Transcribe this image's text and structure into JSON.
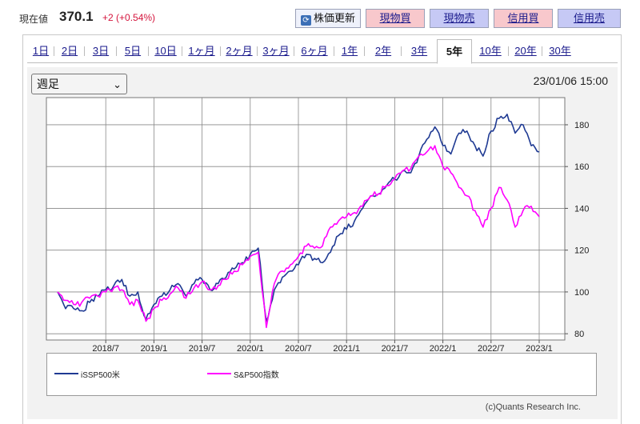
{
  "header": {
    "price_label": "現在値",
    "price_value": "370.1",
    "price_change": "+2 (+0.54%)"
  },
  "buttons": {
    "refresh": "株価更新",
    "genbutsu_buy": "現物買",
    "genbutsu_sell": "現物売",
    "shinyo_buy": "信用買",
    "shinyo_sell": "信用売"
  },
  "tabs": [
    {
      "label": "1日"
    },
    {
      "label": "2日"
    },
    {
      "label": "3日"
    },
    {
      "label": "5日"
    },
    {
      "label": "10日"
    },
    {
      "label": "1ヶ月"
    },
    {
      "label": "2ヶ月"
    },
    {
      "label": "3ヶ月"
    },
    {
      "label": "6ヶ月"
    },
    {
      "label": "1年"
    },
    {
      "label": "2年"
    },
    {
      "label": "3年"
    },
    {
      "label": "5年",
      "active": true
    },
    {
      "label": "10年"
    },
    {
      "label": "20年"
    },
    {
      "label": "30年"
    }
  ],
  "period_select": {
    "value": "週足"
  },
  "timestamp": "23/01/06 15:00",
  "credit": "(c)Quants Research Inc.",
  "colors": {
    "series1": "#1f3a93",
    "series2": "#ff00ff",
    "grid": "#888888",
    "plot_bg": "#ffffff"
  },
  "chart_data": {
    "type": "line",
    "x_tick_labels": [
      "2018/7",
      "2019/1",
      "2019/7",
      "2020/1",
      "2020/7",
      "2021/1",
      "2021/7",
      "2022/1",
      "2022/7",
      "2023/1"
    ],
    "ylim": [
      77,
      193
    ],
    "y_ticks": [
      80,
      100,
      120,
      140,
      160,
      180
    ],
    "grid": true,
    "legend_position": "bottom",
    "series": [
      {
        "name": "iSSP500米",
        "color": "#1f3a93",
        "points": [
          [
            "2018/01",
            100
          ],
          [
            "2018/02",
            92
          ],
          [
            "2018/03",
            92
          ],
          [
            "2018/04",
            91
          ],
          [
            "2018/05",
            95
          ],
          [
            "2018/06",
            98
          ],
          [
            "2018/07",
            101
          ],
          [
            "2018/08",
            103
          ],
          [
            "2018/09",
            106
          ],
          [
            "2018/10",
            98
          ],
          [
            "2018/11",
            100
          ],
          [
            "2018/12",
            87
          ],
          [
            "2019/01",
            94
          ],
          [
            "2019/02",
            98
          ],
          [
            "2019/03",
            101
          ],
          [
            "2019/04",
            104
          ],
          [
            "2019/05",
            98
          ],
          [
            "2019/06",
            104
          ],
          [
            "2019/07",
            106
          ],
          [
            "2019/08",
            101
          ],
          [
            "2019/09",
            104
          ],
          [
            "2019/10",
            107
          ],
          [
            "2019/11",
            111
          ],
          [
            "2019/12",
            114
          ],
          [
            "2020/01",
            118
          ],
          [
            "2020/02",
            121
          ],
          [
            "2020/03",
            86
          ],
          [
            "2020/04",
            101
          ],
          [
            "2020/05",
            107
          ],
          [
            "2020/06",
            110
          ],
          [
            "2020/07",
            113
          ],
          [
            "2020/08",
            118
          ],
          [
            "2020/09",
            116
          ],
          [
            "2020/10",
            114
          ],
          [
            "2020/11",
            119
          ],
          [
            "2020/12",
            127
          ],
          [
            "2021/01",
            130
          ],
          [
            "2021/02",
            134
          ],
          [
            "2021/03",
            140
          ],
          [
            "2021/04",
            146
          ],
          [
            "2021/05",
            147
          ],
          [
            "2021/06",
            151
          ],
          [
            "2021/07",
            154
          ],
          [
            "2021/08",
            158
          ],
          [
            "2021/09",
            157
          ],
          [
            "2021/10",
            165
          ],
          [
            "2021/11",
            173
          ],
          [
            "2021/12",
            179
          ],
          [
            "2022/01",
            170
          ],
          [
            "2022/02",
            166
          ],
          [
            "2022/03",
            176
          ],
          [
            "2022/04",
            177
          ],
          [
            "2022/05",
            170
          ],
          [
            "2022/06",
            165
          ],
          [
            "2022/07",
            177
          ],
          [
            "2022/08",
            183
          ],
          [
            "2022/09",
            185
          ],
          [
            "2022/10",
            176
          ],
          [
            "2022/11",
            180
          ],
          [
            "2022/12",
            170
          ],
          [
            "2023/01",
            167
          ]
        ]
      },
      {
        "name": "S&P500指数",
        "color": "#ff00ff",
        "points": [
          [
            "2018/01",
            100
          ],
          [
            "2018/02",
            96
          ],
          [
            "2018/03",
            94
          ],
          [
            "2018/04",
            95
          ],
          [
            "2018/05",
            97
          ],
          [
            "2018/06",
            98
          ],
          [
            "2018/07",
            100
          ],
          [
            "2018/08",
            102
          ],
          [
            "2018/09",
            101
          ],
          [
            "2018/10",
            94
          ],
          [
            "2018/11",
            96
          ],
          [
            "2018/12",
            86
          ],
          [
            "2019/01",
            92
          ],
          [
            "2019/02",
            96
          ],
          [
            "2019/03",
            99
          ],
          [
            "2019/04",
            102
          ],
          [
            "2019/05",
            97
          ],
          [
            "2019/06",
            102
          ],
          [
            "2019/07",
            105
          ],
          [
            "2019/08",
            101
          ],
          [
            "2019/09",
            103
          ],
          [
            "2019/10",
            106
          ],
          [
            "2019/11",
            110
          ],
          [
            "2019/12",
            113
          ],
          [
            "2020/01",
            117
          ],
          [
            "2020/02",
            119
          ],
          [
            "2020/03",
            83
          ],
          [
            "2020/04",
            104
          ],
          [
            "2020/05",
            110
          ],
          [
            "2020/06",
            113
          ],
          [
            "2020/07",
            117
          ],
          [
            "2020/08",
            122
          ],
          [
            "2020/09",
            121
          ],
          [
            "2020/10",
            122
          ],
          [
            "2020/11",
            131
          ],
          [
            "2020/12",
            134
          ],
          [
            "2021/01",
            136
          ],
          [
            "2021/02",
            138
          ],
          [
            "2021/03",
            141
          ],
          [
            "2021/04",
            146
          ],
          [
            "2021/05",
            147
          ],
          [
            "2021/06",
            151
          ],
          [
            "2021/07",
            154
          ],
          [
            "2021/08",
            158
          ],
          [
            "2021/09",
            159
          ],
          [
            "2021/10",
            165
          ],
          [
            "2021/11",
            167
          ],
          [
            "2021/12",
            170
          ],
          [
            "2022/01",
            160
          ],
          [
            "2022/02",
            157
          ],
          [
            "2022/03",
            150
          ],
          [
            "2022/04",
            146
          ],
          [
            "2022/05",
            139
          ],
          [
            "2022/06",
            131
          ],
          [
            "2022/07",
            140
          ],
          [
            "2022/08",
            150
          ],
          [
            "2022/09",
            144
          ],
          [
            "2022/10",
            131
          ],
          [
            "2022/11",
            139
          ],
          [
            "2022/12",
            141
          ],
          [
            "2023/01",
            136
          ]
        ]
      }
    ]
  }
}
